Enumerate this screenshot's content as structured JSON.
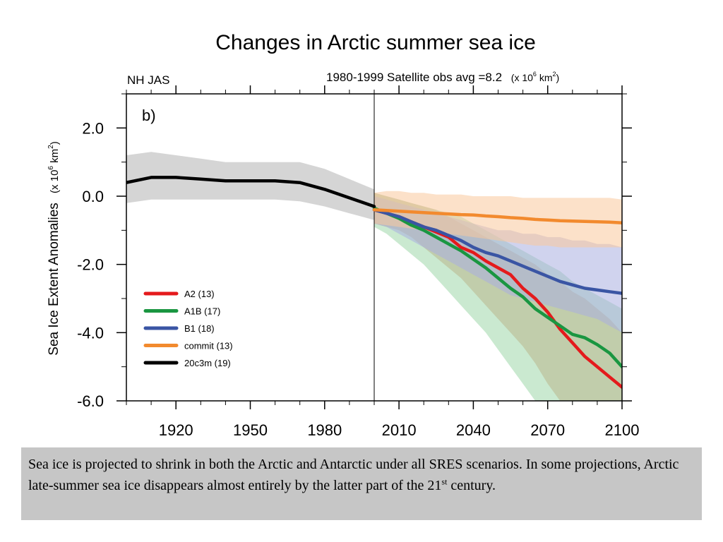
{
  "slide": {
    "title": "Changes in Arctic summer sea ice",
    "caption_main": "Sea ice is projected to shrink in both the Arctic and Antarctic under all SRES scenarios. In some projections, Arctic late-summer sea ice disappears almost entirely by the latter part of the 21",
    "caption_sup": "st",
    "caption_end": " century."
  },
  "chart_data": {
    "type": "line",
    "region_label": "NH JAS",
    "header_note": "1980-1999 Satellite obs avg =8.2",
    "header_unit_prefix": "(x 10",
    "header_unit_exp": "6",
    "header_unit_mid": " km",
    "header_unit_exp2": "2",
    "header_unit_suffix": ")",
    "panel_label": "b)",
    "ylabel": "Sea Ice Extent Anomalies",
    "ylabel_unit_prefix": "(x 10",
    "ylabel_unit_exp": "6",
    "ylabel_unit_mid": " km",
    "ylabel_unit_exp2": "2",
    "ylabel_unit_suffix": ")",
    "xlim": [
      1900,
      2100
    ],
    "ylim": [
      -6,
      3
    ],
    "x_ticks": [
      1920,
      1950,
      1980,
      2010,
      2040,
      2070,
      2100
    ],
    "x_tick_labels": [
      "1920",
      "1950",
      "1980",
      "2010",
      "2040",
      "2070",
      "2100"
    ],
    "y_ticks": [
      2,
      0,
      -2,
      -4,
      -6
    ],
    "y_tick_labels": [
      "2.0",
      "0.0",
      "-2.0",
      "-4.0",
      "-6.0"
    ],
    "divider_x": 2000,
    "legend_position": "lower-left",
    "series": [
      {
        "name": "A2 (13)",
        "color": "#e41a1c",
        "band_color": "#d98f6a",
        "x": [
          2000,
          2005,
          2010,
          2015,
          2020,
          2025,
          2030,
          2035,
          2040,
          2045,
          2050,
          2055,
          2060,
          2065,
          2070,
          2075,
          2080,
          2085,
          2090,
          2095,
          2100
        ],
        "values": [
          -0.4,
          -0.5,
          -0.6,
          -0.75,
          -0.9,
          -1.05,
          -1.2,
          -1.5,
          -1.65,
          -1.9,
          -2.1,
          -2.3,
          -2.7,
          -3.0,
          -3.4,
          -3.9,
          -4.3,
          -4.7,
          -5.0,
          -5.3,
          -5.6
        ],
        "band_low": [
          -0.8,
          -0.9,
          -1.0,
          -1.2,
          -1.5,
          -1.8,
          -2.1,
          -2.4,
          -2.8,
          -3.2,
          -3.6,
          -4.0,
          -4.4,
          -4.9,
          -5.5,
          -6.0,
          -6.0,
          -6.0,
          -6.0,
          -6.0,
          -6.0
        ],
        "band_high": [
          0.1,
          0.0,
          -0.1,
          -0.2,
          -0.3,
          -0.4,
          -0.6,
          -0.8,
          -1.0,
          -1.2,
          -1.4,
          -1.6,
          -1.8,
          -2.0,
          -2.3,
          -2.5,
          -2.8,
          -3.0,
          -3.3,
          -3.6,
          -4.0
        ]
      },
      {
        "name": "A1B (17)",
        "color": "#1a9641",
        "band_color": "#9fd7a9",
        "x": [
          2000,
          2005,
          2010,
          2015,
          2020,
          2025,
          2030,
          2035,
          2040,
          2045,
          2050,
          2055,
          2060,
          2065,
          2070,
          2075,
          2080,
          2085,
          2090,
          2095,
          2100
        ],
        "values": [
          -0.35,
          -0.5,
          -0.65,
          -0.85,
          -1.0,
          -1.2,
          -1.4,
          -1.6,
          -1.85,
          -2.1,
          -2.4,
          -2.7,
          -2.95,
          -3.3,
          -3.55,
          -3.8,
          -4.05,
          -4.15,
          -4.35,
          -4.6,
          -5.0
        ],
        "band_low": [
          -0.9,
          -1.1,
          -1.4,
          -1.7,
          -2.0,
          -2.4,
          -2.8,
          -3.2,
          -3.6,
          -4.0,
          -4.5,
          -5.0,
          -5.5,
          -6.0,
          -6.0,
          -6.0,
          -6.0,
          -6.0,
          -6.0,
          -6.0,
          -6.0
        ],
        "band_high": [
          0.1,
          0.0,
          -0.1,
          -0.2,
          -0.3,
          -0.4,
          -0.5,
          -0.6,
          -0.8,
          -1.0,
          -1.2,
          -1.4,
          -1.6,
          -1.8,
          -2.0,
          -2.2,
          -2.5,
          -2.7,
          -2.9,
          -3.1,
          -3.3
        ]
      },
      {
        "name": "B1 (18)",
        "color": "#3a55a4",
        "band_color": "#a9aee0",
        "x": [
          2000,
          2005,
          2010,
          2015,
          2020,
          2025,
          2030,
          2035,
          2040,
          2045,
          2050,
          2055,
          2060,
          2065,
          2070,
          2075,
          2080,
          2085,
          2090,
          2095,
          2100
        ],
        "values": [
          -0.4,
          -0.5,
          -0.6,
          -0.75,
          -0.9,
          -1.0,
          -1.15,
          -1.3,
          -1.5,
          -1.65,
          -1.75,
          -1.9,
          -2.05,
          -2.2,
          -2.35,
          -2.5,
          -2.6,
          -2.7,
          -2.75,
          -2.8,
          -2.85
        ],
        "band_low": [
          -0.8,
          -0.9,
          -1.1,
          -1.3,
          -1.5,
          -1.7,
          -1.9,
          -2.1,
          -2.3,
          -2.5,
          -2.7,
          -2.9,
          -3.0,
          -3.1,
          -3.2,
          -3.3,
          -3.4,
          -3.5,
          -3.6,
          -3.8,
          -4.0
        ],
        "band_high": [
          0.0,
          -0.1,
          -0.2,
          -0.3,
          -0.4,
          -0.5,
          -0.6,
          -0.7,
          -0.8,
          -0.9,
          -1.0,
          -1.0,
          -1.1,
          -1.1,
          -1.2,
          -1.2,
          -1.3,
          -1.3,
          -1.4,
          -1.4,
          -1.5
        ]
      },
      {
        "name": "commit (13)",
        "color": "#f28a2e",
        "band_color": "#f9c89c",
        "x": [
          2000,
          2005,
          2010,
          2015,
          2020,
          2025,
          2030,
          2035,
          2040,
          2045,
          2050,
          2055,
          2060,
          2065,
          2070,
          2075,
          2080,
          2085,
          2090,
          2095,
          2100
        ],
        "values": [
          -0.4,
          -0.42,
          -0.44,
          -0.46,
          -0.48,
          -0.5,
          -0.52,
          -0.54,
          -0.55,
          -0.58,
          -0.6,
          -0.63,
          -0.65,
          -0.68,
          -0.7,
          -0.72,
          -0.73,
          -0.74,
          -0.75,
          -0.76,
          -0.78
        ],
        "band_low": [
          -0.8,
          -0.85,
          -0.9,
          -0.95,
          -1.0,
          -1.05,
          -1.1,
          -1.15,
          -1.2,
          -1.25,
          -1.3,
          -1.35,
          -1.4,
          -1.45,
          -1.45,
          -1.5,
          -1.5,
          -1.5,
          -1.5,
          -1.5,
          -1.5
        ],
        "band_high": [
          0.1,
          0.15,
          0.15,
          0.1,
          0.1,
          0.05,
          0.05,
          0.05,
          0.0,
          0.0,
          0.0,
          0.0,
          -0.05,
          -0.05,
          -0.05,
          -0.05,
          -0.05,
          -0.05,
          -0.05,
          -0.05,
          -0.1
        ]
      },
      {
        "name": "20c3m (19)",
        "color": "#000000",
        "band_color": "#b3b3b3",
        "x": [
          1900,
          1910,
          1920,
          1930,
          1940,
          1950,
          1960,
          1970,
          1980,
          1990,
          2000
        ],
        "values": [
          0.4,
          0.55,
          0.55,
          0.5,
          0.45,
          0.45,
          0.45,
          0.4,
          0.2,
          -0.05,
          -0.3
        ],
        "band_low": [
          -0.2,
          -0.1,
          -0.1,
          -0.1,
          -0.1,
          -0.1,
          -0.1,
          -0.15,
          -0.3,
          -0.5,
          -0.7
        ],
        "band_high": [
          1.2,
          1.3,
          1.2,
          1.1,
          1.0,
          1.0,
          1.0,
          1.0,
          0.8,
          0.5,
          0.2
        ]
      }
    ]
  }
}
